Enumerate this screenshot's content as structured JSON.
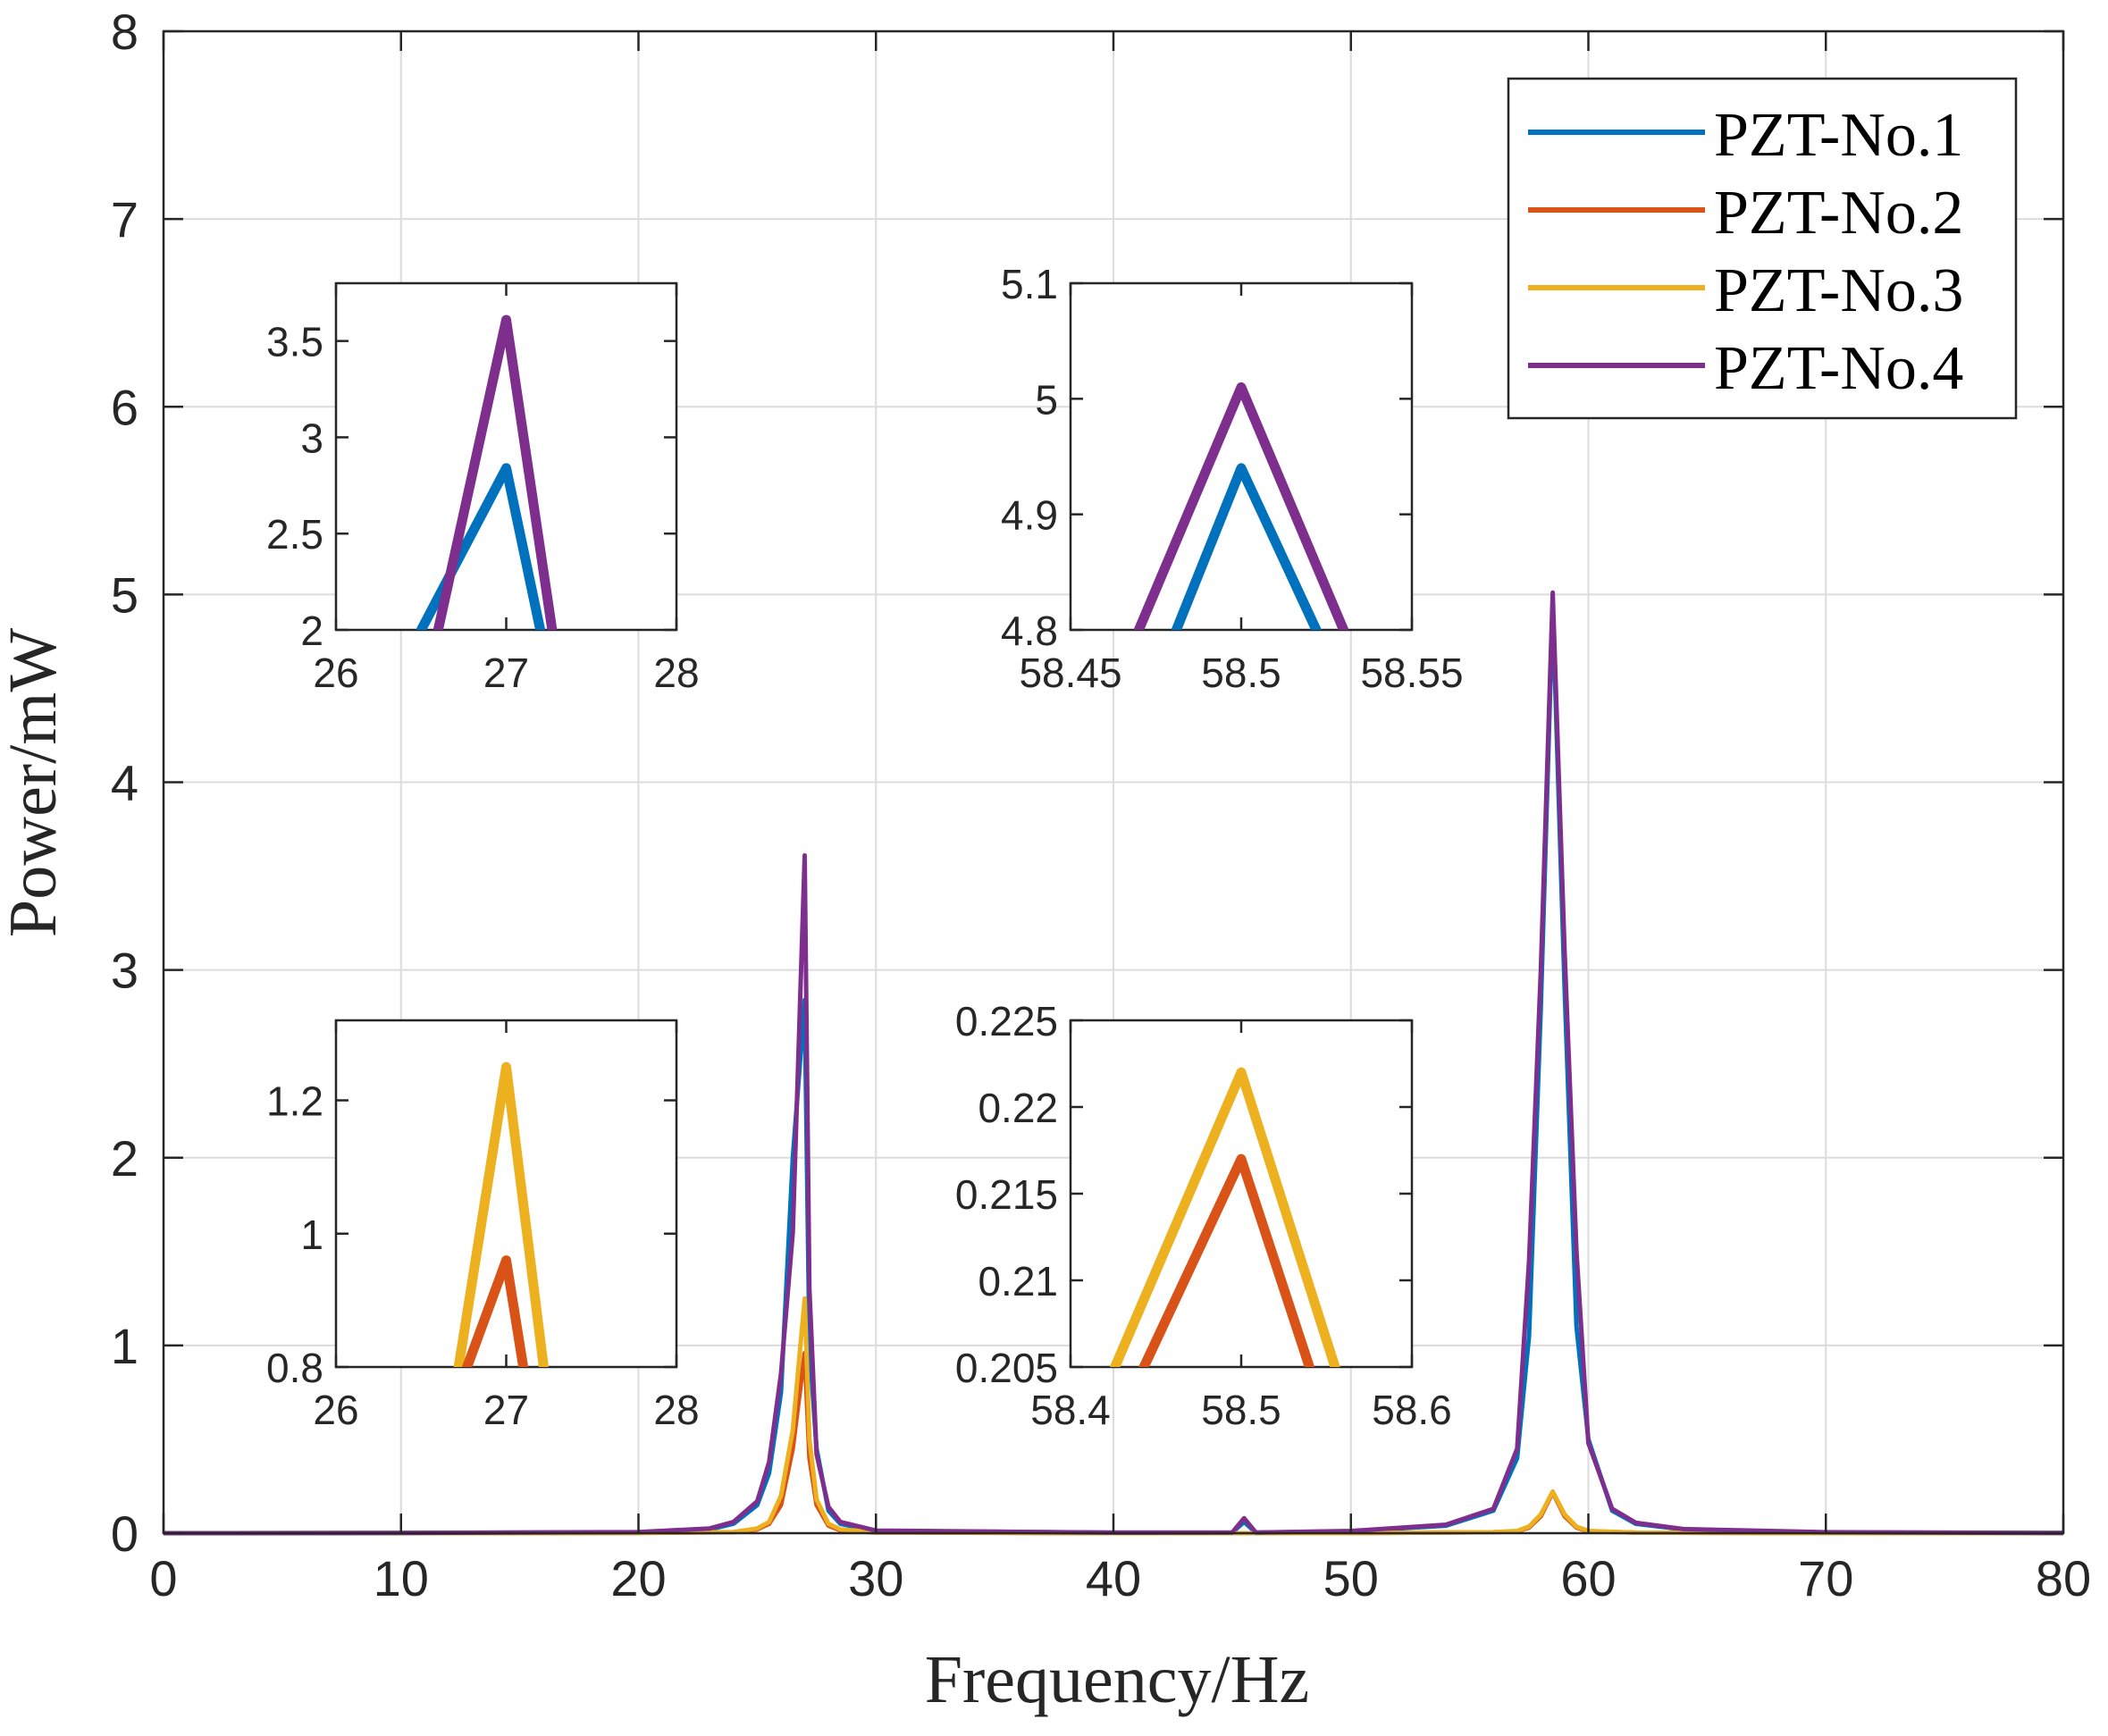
{
  "chart_data": {
    "type": "line",
    "xlabel": "Frequency/Hz",
    "ylabel": "Power/mW",
    "xlim": [
      0,
      80
    ],
    "ylim": [
      0,
      8
    ],
    "xticks": [
      0,
      10,
      20,
      30,
      40,
      50,
      60,
      70,
      80
    ],
    "yticks": [
      0,
      1,
      2,
      3,
      4,
      5,
      6,
      7,
      8
    ],
    "grid": true,
    "legend_position": "top-right",
    "series": [
      {
        "name": "PZT-No.1",
        "color": "#0072BD",
        "points": [
          [
            0,
            0.0
          ],
          [
            10,
            0.001
          ],
          [
            20,
            0.005
          ],
          [
            23,
            0.02
          ],
          [
            24,
            0.05
          ],
          [
            25,
            0.15
          ],
          [
            25.5,
            0.32
          ],
          [
            26,
            0.75
          ],
          [
            26.5,
            2.0
          ],
          [
            27,
            2.84
          ],
          [
            27.2,
            1.0
          ],
          [
            27.5,
            0.45
          ],
          [
            28,
            0.12
          ],
          [
            28.5,
            0.05
          ],
          [
            30,
            0.012
          ],
          [
            40,
            0.003
          ],
          [
            45,
            0.003
          ],
          [
            45.5,
            0.06
          ],
          [
            46,
            0.003
          ],
          [
            50,
            0.01
          ],
          [
            54,
            0.04
          ],
          [
            56,
            0.12
          ],
          [
            57,
            0.4
          ],
          [
            57.5,
            1.05
          ],
          [
            58,
            2.8
          ],
          [
            58.5,
            4.94
          ],
          [
            59,
            2.9
          ],
          [
            59.5,
            1.1
          ],
          [
            60,
            0.5
          ],
          [
            61,
            0.12
          ],
          [
            62,
            0.05
          ],
          [
            64,
            0.02
          ],
          [
            70,
            0.004
          ],
          [
            80,
            0.001
          ]
        ]
      },
      {
        "name": "PZT-No.2",
        "color": "#D95319",
        "points": [
          [
            0,
            0.0
          ],
          [
            20,
            0.001
          ],
          [
            24,
            0.005
          ],
          [
            25,
            0.02
          ],
          [
            25.5,
            0.05
          ],
          [
            26,
            0.15
          ],
          [
            26.5,
            0.45
          ],
          [
            27,
            0.96
          ],
          [
            27.2,
            0.4
          ],
          [
            27.5,
            0.15
          ],
          [
            28,
            0.04
          ],
          [
            28.5,
            0.015
          ],
          [
            30,
            0.004
          ],
          [
            40,
            0.0
          ],
          [
            50,
            0.0
          ],
          [
            56,
            0.005
          ],
          [
            57,
            0.01
          ],
          [
            57.5,
            0.03
          ],
          [
            58,
            0.09
          ],
          [
            58.5,
            0.217
          ],
          [
            59,
            0.09
          ],
          [
            59.5,
            0.03
          ],
          [
            60,
            0.01
          ],
          [
            62,
            0.003
          ],
          [
            70,
            0.0
          ],
          [
            80,
            0.0
          ]
        ]
      },
      {
        "name": "PZT-No.3",
        "color": "#EDB120",
        "points": [
          [
            0,
            0.0
          ],
          [
            20,
            0.001
          ],
          [
            24,
            0.006
          ],
          [
            25,
            0.025
          ],
          [
            25.5,
            0.06
          ],
          [
            26,
            0.2
          ],
          [
            26.5,
            0.55
          ],
          [
            27,
            1.25
          ],
          [
            27.2,
            0.5
          ],
          [
            27.5,
            0.18
          ],
          [
            28,
            0.05
          ],
          [
            28.5,
            0.02
          ],
          [
            30,
            0.005
          ],
          [
            40,
            0.0
          ],
          [
            50,
            0.0
          ],
          [
            56,
            0.005
          ],
          [
            57,
            0.012
          ],
          [
            57.5,
            0.035
          ],
          [
            58,
            0.1
          ],
          [
            58.5,
            0.222
          ],
          [
            59,
            0.1
          ],
          [
            59.5,
            0.035
          ],
          [
            60,
            0.012
          ],
          [
            62,
            0.003
          ],
          [
            70,
            0.0
          ],
          [
            80,
            0.0
          ]
        ]
      },
      {
        "name": "PZT-No.4",
        "color": "#7E2F8E",
        "points": [
          [
            0,
            0.0
          ],
          [
            10,
            0.001
          ],
          [
            20,
            0.006
          ],
          [
            23,
            0.025
          ],
          [
            24,
            0.06
          ],
          [
            25,
            0.17
          ],
          [
            25.5,
            0.38
          ],
          [
            26,
            0.85
          ],
          [
            26.5,
            1.6
          ],
          [
            27,
            3.61
          ],
          [
            27.2,
            1.3
          ],
          [
            27.5,
            0.42
          ],
          [
            28,
            0.14
          ],
          [
            28.5,
            0.06
          ],
          [
            30,
            0.014
          ],
          [
            40,
            0.003
          ],
          [
            45,
            0.004
          ],
          [
            45.5,
            0.08
          ],
          [
            46,
            0.004
          ],
          [
            50,
            0.012
          ],
          [
            54,
            0.045
          ],
          [
            56,
            0.13
          ],
          [
            57,
            0.45
          ],
          [
            57.5,
            1.45
          ],
          [
            58,
            3.0
          ],
          [
            58.5,
            5.01
          ],
          [
            59,
            3.1
          ],
          [
            59.5,
            1.5
          ],
          [
            60,
            0.48
          ],
          [
            61,
            0.13
          ],
          [
            62,
            0.055
          ],
          [
            64,
            0.022
          ],
          [
            70,
            0.005
          ],
          [
            80,
            0.001
          ]
        ]
      }
    ],
    "insets": [
      {
        "xlim": [
          26,
          28
        ],
        "ylim": [
          2,
          3.8
        ],
        "xticks": [
          26,
          27,
          28
        ],
        "yticks": [
          2,
          2.5,
          3,
          3.5
        ],
        "lines": [
          {
            "color": "#0072BD",
            "points": [
              [
                26.5,
                2.0
              ],
              [
                27,
                2.84
              ],
              [
                27.2,
                2.0
              ]
            ]
          },
          {
            "color": "#7E2F8E",
            "points": [
              [
                26.6,
                2.0
              ],
              [
                27,
                3.61
              ],
              [
                27.27,
                2.0
              ]
            ]
          }
        ]
      },
      {
        "xlim": [
          58.45,
          58.55
        ],
        "ylim": [
          4.8,
          5.1
        ],
        "xticks": [
          58.45,
          58.5,
          58.55
        ],
        "yticks": [
          4.8,
          4.9,
          5,
          5.1
        ],
        "lines": [
          {
            "color": "#0072BD",
            "points": [
              [
                58.481,
                4.8
              ],
              [
                58.5,
                4.94
              ],
              [
                58.522,
                4.8
              ]
            ]
          },
          {
            "color": "#7E2F8E",
            "points": [
              [
                58.47,
                4.8
              ],
              [
                58.5,
                5.01
              ],
              [
                58.53,
                4.8
              ]
            ]
          }
        ]
      },
      {
        "xlim": [
          26,
          28
        ],
        "ylim": [
          0.8,
          1.32
        ],
        "xticks": [
          26,
          27,
          28
        ],
        "yticks": [
          0.8,
          1,
          1.2
        ],
        "lines": [
          {
            "color": "#EDB120",
            "points": [
              [
                26.72,
                0.8
              ],
              [
                27,
                1.25
              ],
              [
                27.22,
                0.8
              ]
            ]
          },
          {
            "color": "#D95319",
            "points": [
              [
                26.77,
                0.8
              ],
              [
                27,
                0.96
              ],
              [
                27.1,
                0.8
              ]
            ]
          }
        ]
      },
      {
        "xlim": [
          58.4,
          58.6
        ],
        "ylim": [
          0.205,
          0.225
        ],
        "xticks": [
          58.4,
          58.5,
          58.6
        ],
        "yticks": [
          0.205,
          0.21,
          0.215,
          0.22,
          0.225
        ],
        "lines": [
          {
            "color": "#EDB120",
            "points": [
              [
                58.426,
                0.205
              ],
              [
                58.5,
                0.222
              ],
              [
                58.555,
                0.205
              ]
            ]
          },
          {
            "color": "#D95319",
            "points": [
              [
                58.443,
                0.205
              ],
              [
                58.5,
                0.217
              ],
              [
                58.54,
                0.205
              ]
            ]
          }
        ]
      }
    ]
  }
}
